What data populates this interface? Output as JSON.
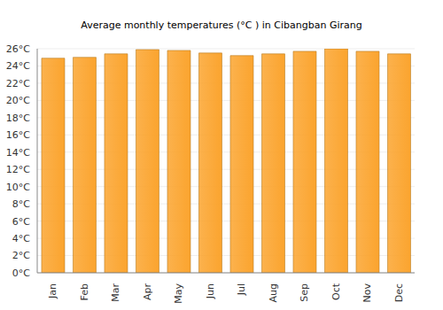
{
  "chart_data": {
    "type": "bar",
    "title": "Average monthly temperatures (°C ) in Cibangban Girang",
    "categories": [
      "Jan",
      "Feb",
      "Mar",
      "Apr",
      "May",
      "Jun",
      "Jul",
      "Aug",
      "Sep",
      "Oct",
      "Nov",
      "Dec"
    ],
    "values": [
      24.9,
      25.0,
      25.4,
      25.9,
      25.8,
      25.5,
      25.2,
      25.4,
      25.7,
      26.0,
      25.7,
      25.4
    ],
    "color": "#fba42e",
    "ylim": [
      0,
      26
    ],
    "yticks": [
      {
        "value": 0,
        "label": "0°C"
      },
      {
        "value": 2,
        "label": "2°C"
      },
      {
        "value": 4,
        "label": "4°C"
      },
      {
        "value": 6,
        "label": "6°C"
      },
      {
        "value": 8,
        "label": "8°C"
      },
      {
        "value": 10,
        "label": "10°C"
      },
      {
        "value": 12,
        "label": "12°C"
      },
      {
        "value": 14,
        "label": "14°C"
      },
      {
        "value": 16,
        "label": "16°C"
      },
      {
        "value": 18,
        "label": "18°C"
      },
      {
        "value": 20,
        "label": "20°C"
      },
      {
        "value": 22,
        "label": "22°C"
      },
      {
        "value": 24,
        "label": "24°C"
      },
      {
        "value": 26,
        "label": "26°C"
      }
    ],
    "grid": true
  }
}
